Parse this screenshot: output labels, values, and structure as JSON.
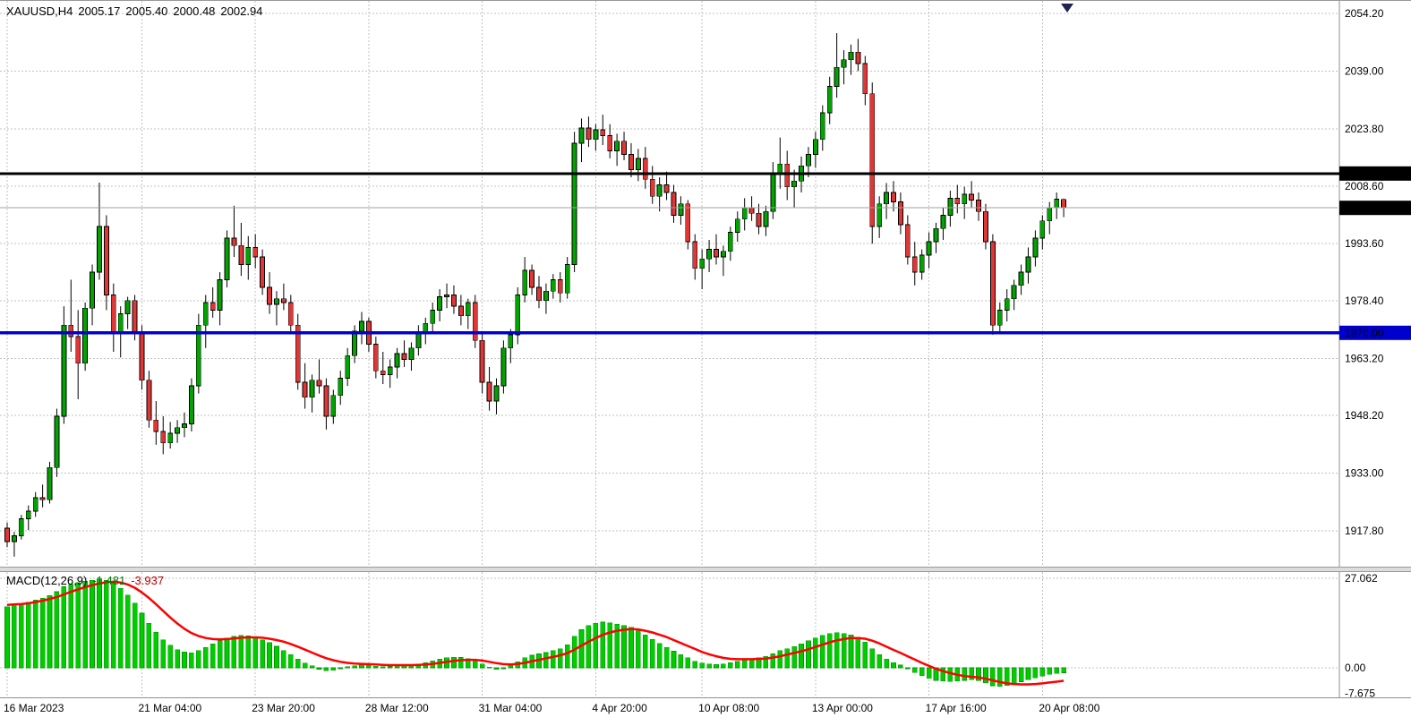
{
  "info_bar": {
    "symbol": "XAUUSD,H4",
    "open": "2005.17",
    "high": "2005.40",
    "low": "2000.48",
    "close": "2002.94"
  },
  "macd_panel": {
    "name": "MACD(12,26,9)",
    "main_value": "-1.481",
    "signal_value": "-3.937"
  },
  "colors": {
    "bull": "#00a300",
    "bear": "#e13636",
    "wick": "#000000",
    "macd_bar": "#00cc00",
    "macd_bar_edge": "#009900",
    "signal_line": "#ff0000",
    "resistance": "#000000",
    "support": "#0000cc",
    "grid": "#c2c2c2",
    "axis_border": "#8f8f8f",
    "axis_text": "#000000",
    "badge_dark": "#000000",
    "badge_blue": "#0000cc",
    "badge_text": "#ffffff",
    "current_price_line": "#a0a0a0",
    "shift_marker": "#222255"
  },
  "chart_data": [
    {
      "type": "candlestick",
      "symbol": "XAUUSD",
      "timeframe": "H4",
      "title": "XAUUSD,H4",
      "ylim": [
        1905,
        2058
      ],
      "grid": true,
      "price_ticks": [
        "2054.20",
        "2039.00",
        "2023.80",
        "2008.60",
        "1993.60",
        "1978.40",
        "1963.20",
        "1948.20",
        "1933.00",
        "1917.80"
      ],
      "levels": {
        "resistance": {
          "price": 2012.0,
          "label": "2012.00"
        },
        "support": {
          "price": 1970.0,
          "label": "1970.00"
        },
        "last_price": {
          "price": 2002.94,
          "label": "2002.94"
        }
      },
      "time_labels": [
        {
          "text": "16 Mar 2023",
          "index": 0
        },
        {
          "text": "21 Mar 04:00",
          "index": 19
        },
        {
          "text": "23 Mar 20:00",
          "index": 35
        },
        {
          "text": "28 Mar 12:00",
          "index": 51
        },
        {
          "text": "31 Mar 04:00",
          "index": 67
        },
        {
          "text": "4 Apr 20:00",
          "index": 83
        },
        {
          "text": "10 Apr 08:00",
          "index": 98
        },
        {
          "text": "13 Apr 00:00",
          "index": 114
        },
        {
          "text": "17 Apr 16:00",
          "index": 130
        },
        {
          "text": "20 Apr 08:00",
          "index": 146
        }
      ],
      "candles_ohlc": [
        [
          1918.5,
          1920,
          1913.5,
          1915
        ],
        [
          1915,
          1917.5,
          1911,
          1916.5
        ],
        [
          1916.5,
          1922,
          1915.5,
          1921
        ],
        [
          1921,
          1924.5,
          1918,
          1923
        ],
        [
          1923,
          1928,
          1921.5,
          1926.5
        ],
        [
          1926.5,
          1930,
          1924,
          1926
        ],
        [
          1926,
          1936,
          1925,
          1934.5
        ],
        [
          1934.5,
          1950,
          1932,
          1948
        ],
        [
          1948,
          1977,
          1946,
          1972
        ],
        [
          1972,
          1984,
          1965,
          1969
        ],
        [
          1969,
          1976,
          1952.5,
          1962
        ],
        [
          1962,
          1978,
          1960,
          1976.5
        ],
        [
          1976.5,
          1988,
          1972,
          1986
        ],
        [
          1986,
          2009.6,
          1984,
          1998
        ],
        [
          1998,
          2001,
          1976,
          1980
        ],
        [
          1980,
          1983,
          1965,
          1970
        ],
        [
          1970,
          1977,
          1963.5,
          1975
        ],
        [
          1975,
          1979.5,
          1971,
          1978.5
        ],
        [
          1978.5,
          1980,
          1968,
          1970
        ],
        [
          1970,
          1972,
          1955,
          1957.5
        ],
        [
          1957.5,
          1960,
          1945,
          1947
        ],
        [
          1947,
          1952,
          1940.5,
          1944
        ],
        [
          1944,
          1948,
          1938,
          1941
        ],
        [
          1941,
          1946.5,
          1939.5,
          1943.5
        ],
        [
          1943.5,
          1947,
          1941,
          1945
        ],
        [
          1945,
          1949,
          1942.5,
          1946
        ],
        [
          1946,
          1958,
          1944,
          1956
        ],
        [
          1956,
          1975,
          1954,
          1972
        ],
        [
          1972,
          1980,
          1966,
          1978
        ],
        [
          1978,
          1982,
          1974,
          1976
        ],
        [
          1976,
          1986,
          1972,
          1984
        ],
        [
          1984,
          1997,
          1982,
          1995
        ],
        [
          1995,
          2003.5,
          1990,
          1993
        ],
        [
          1993,
          1999,
          1985,
          1988
        ],
        [
          1988,
          1995.5,
          1984,
          1992.5
        ],
        [
          1992.5,
          1996,
          1987,
          1990
        ],
        [
          1990,
          1992,
          1980,
          1982
        ],
        [
          1982,
          1986,
          1975,
          1977.5
        ],
        [
          1977.5,
          1981,
          1972,
          1979
        ],
        [
          1979,
          1983,
          1976,
          1978
        ],
        [
          1978,
          1980,
          1970,
          1972
        ],
        [
          1972,
          1975,
          1955,
          1957
        ],
        [
          1957,
          1962,
          1950,
          1953
        ],
        [
          1953,
          1959,
          1949,
          1957.5
        ],
        [
          1957.5,
          1963,
          1954,
          1956
        ],
        [
          1956,
          1958,
          1944.5,
          1948
        ],
        [
          1948,
          1955,
          1946,
          1953.5
        ],
        [
          1953.5,
          1960,
          1951,
          1958
        ],
        [
          1958,
          1966,
          1956,
          1964
        ],
        [
          1964,
          1972,
          1962,
          1970.5
        ],
        [
          1970.5,
          1975.5,
          1967,
          1973
        ],
        [
          1973,
          1974,
          1965,
          1967
        ],
        [
          1967,
          1969,
          1958,
          1960
        ],
        [
          1960,
          1965,
          1956.5,
          1959
        ],
        [
          1959,
          1963,
          1955.5,
          1961
        ],
        [
          1961,
          1966,
          1958,
          1964.5
        ],
        [
          1964.5,
          1968,
          1961,
          1963
        ],
        [
          1963,
          1967.5,
          1960,
          1966
        ],
        [
          1966,
          1972,
          1964,
          1970
        ],
        [
          1970,
          1974,
          1967,
          1972.5
        ],
        [
          1972.5,
          1978,
          1970,
          1976
        ],
        [
          1976,
          1981.5,
          1973,
          1979.5
        ],
        [
          1979.5,
          1983,
          1976.5,
          1980
        ],
        [
          1980,
          1982.5,
          1975,
          1977
        ],
        [
          1977,
          1980,
          1972,
          1974.5
        ],
        [
          1974.5,
          1979,
          1971,
          1978
        ],
        [
          1978,
          1980,
          1966,
          1968
        ],
        [
          1968,
          1970,
          1954,
          1957
        ],
        [
          1957,
          1961,
          1949.5,
          1952
        ],
        [
          1952,
          1958,
          1948.5,
          1956
        ],
        [
          1956,
          1968,
          1954,
          1966
        ],
        [
          1966,
          1971,
          1962,
          1969.5
        ],
        [
          1969.5,
          1982,
          1967,
          1980
        ],
        [
          1980,
          1990,
          1978,
          1986.5
        ],
        [
          1986.5,
          1988,
          1980,
          1982
        ],
        [
          1982,
          1985,
          1976.5,
          1978.5
        ],
        [
          1978.5,
          1983,
          1975,
          1981
        ],
        [
          1981,
          1985.5,
          1979,
          1984
        ],
        [
          1984,
          1986,
          1978,
          1980.5
        ],
        [
          1980.5,
          1990,
          1979,
          1988
        ],
        [
          1988,
          2023,
          1986,
          2020
        ],
        [
          2020,
          2026.5,
          2015,
          2024
        ],
        [
          2024,
          2027,
          2019,
          2021
        ],
        [
          2021,
          2025,
          2018,
          2023.5
        ],
        [
          2023.5,
          2027.5,
          2019.5,
          2022
        ],
        [
          2022,
          2025,
          2016,
          2018
        ],
        [
          2018,
          2022.5,
          2014,
          2020.5
        ],
        [
          2020.5,
          2023,
          2015.5,
          2017
        ],
        [
          2017,
          2020,
          2011,
          2013
        ],
        [
          2013,
          2018.5,
          2010,
          2016
        ],
        [
          2016,
          2019,
          2008,
          2010.5
        ],
        [
          2010.5,
          2014,
          2004,
          2006
        ],
        [
          2006,
          2011,
          2002,
          2009
        ],
        [
          2009,
          2012.5,
          2005,
          2007
        ],
        [
          2007,
          2009,
          1999,
          2001
        ],
        [
          2001,
          2006,
          1998.5,
          2004
        ],
        [
          2004,
          2005,
          1992,
          1994
        ],
        [
          1994,
          1996,
          1984,
          1987
        ],
        [
          1987,
          1992,
          1981.5,
          1989.5
        ],
        [
          1989.5,
          1994.5,
          1986,
          1992
        ],
        [
          1992,
          1996,
          1988,
          1990
        ],
        [
          1990,
          1993,
          1985,
          1991.5
        ],
        [
          1991.5,
          1998,
          1989,
          1996.5
        ],
        [
          1996.5,
          2002,
          1994,
          2000
        ],
        [
          2000,
          2005.5,
          1997,
          2003
        ],
        [
          2003,
          2006,
          1999.5,
          2001.5
        ],
        [
          2001.5,
          2004,
          1996,
          1998
        ],
        [
          1998,
          2003.5,
          1995.5,
          2002
        ],
        [
          2002,
          2015,
          2000,
          2012
        ],
        [
          2012,
          2021.5,
          2008,
          2014.5
        ],
        [
          2014.5,
          2018,
          2005,
          2008.5
        ],
        [
          2008.5,
          2013,
          2003,
          2010
        ],
        [
          2010,
          2016.5,
          2007,
          2014
        ],
        [
          2014,
          2019,
          2011,
          2017
        ],
        [
          2017,
          2023,
          2013.5,
          2021
        ],
        [
          2021,
          2030,
          2018,
          2028
        ],
        [
          2028,
          2037.5,
          2025,
          2035
        ],
        [
          2035,
          2049,
          2032,
          2040
        ],
        [
          2040,
          2044.5,
          2035.5,
          2042
        ],
        [
          2042,
          2046,
          2038,
          2044
        ],
        [
          2044,
          2047.5,
          2039,
          2041
        ],
        [
          2041,
          2043,
          2030,
          2033
        ],
        [
          2033,
          2036,
          1993.5,
          1998
        ],
        [
          1998,
          2006,
          1995,
          2004
        ],
        [
          2004,
          2009.5,
          2000,
          2007
        ],
        [
          2007,
          2010,
          2002,
          2004.5
        ],
        [
          2004.5,
          2007,
          1996,
          1998.5
        ],
        [
          1998.5,
          2001,
          1988,
          1990
        ],
        [
          1990,
          1994,
          1982.5,
          1986
        ],
        [
          1986,
          1992,
          1984,
          1990.5
        ],
        [
          1990.5,
          1996.5,
          1987,
          1994
        ],
        [
          1994,
          1999,
          1991,
          1997.5
        ],
        [
          1997.5,
          2003,
          1994.5,
          2001
        ],
        [
          2001,
          2007.5,
          1998,
          2005.5
        ],
        [
          2005.5,
          2009,
          2001.5,
          2004
        ],
        [
          2004,
          2008.5,
          2000,
          2006.5
        ],
        [
          2006.5,
          2010,
          2003,
          2005
        ],
        [
          2005,
          2007,
          1999.5,
          2002
        ],
        [
          2002,
          2004,
          1992,
          1994
        ],
        [
          1994,
          1996,
          1969.5,
          1972
        ],
        [
          1972,
          1978,
          1970,
          1976
        ],
        [
          1976,
          1981.5,
          1973,
          1979
        ],
        [
          1979,
          1984,
          1976,
          1982.5
        ],
        [
          1982.5,
          1988,
          1980,
          1986
        ],
        [
          1986,
          1992.5,
          1983,
          1990
        ],
        [
          1990,
          1997,
          1987.5,
          1995
        ],
        [
          1995,
          2001,
          1992,
          1999.5
        ],
        [
          1999.5,
          2004.5,
          1996,
          2003
        ],
        [
          2003,
          2007,
          2000,
          2005.2
        ],
        [
          2005.17,
          2005.4,
          2000.48,
          2002.94
        ]
      ]
    },
    {
      "type": "bar",
      "name": "MACD(12,26,9)",
      "params": [
        12,
        26,
        9
      ],
      "ylim": [
        -7.675,
        27.062
      ],
      "axis_ticks": [
        "27.062",
        "0.00",
        "-7.675"
      ],
      "last_main": -1.481,
      "last_signal": -3.937,
      "histogram": [
        18.5,
        19.2,
        19.0,
        19.8,
        20.5,
        21.0,
        21.8,
        23.0,
        24.5,
        25.2,
        25.8,
        26.2,
        26.5,
        26.8,
        26.4,
        25.6,
        24.0,
        22.0,
        19.5,
        16.5,
        13.5,
        10.8,
        8.5,
        6.8,
        5.5,
        4.8,
        4.5,
        5.2,
        6.2,
        7.2,
        8.2,
        9.0,
        9.5,
        9.8,
        9.6,
        9.2,
        8.5,
        7.6,
        6.5,
        5.2,
        4.0,
        2.6,
        1.4,
        0.6,
        -0.4,
        -0.9,
        -0.7,
        -0.2,
        0.3,
        0.6,
        0.9,
        0.8,
        0.5,
        0.3,
        0.4,
        0.6,
        0.7,
        0.9,
        1.2,
        1.6,
        2.1,
        2.6,
        3.0,
        3.2,
        3.1,
        2.8,
        2.2,
        1.2,
        0.2,
        -0.5,
        0.0,
        0.8,
        1.8,
        3.0,
        3.8,
        4.2,
        4.6,
        5.2,
        5.8,
        7.0,
        9.5,
        11.5,
        12.8,
        13.5,
        13.8,
        13.6,
        13.2,
        12.8,
        12.2,
        11.2,
        10.0,
        8.6,
        7.4,
        6.2,
        5.0,
        4.0,
        3.0,
        2.0,
        1.4,
        1.2,
        1.0,
        1.2,
        1.6,
        2.0,
        2.5,
        2.8,
        3.0,
        3.4,
        4.2,
        5.2,
        5.8,
        6.4,
        7.2,
        8.2,
        9.0,
        9.8,
        10.3,
        10.6,
        10.4,
        10.0,
        9.2,
        7.8,
        5.8,
        4.0,
        2.6,
        1.6,
        0.8,
        -0.2,
        -1.4,
        -2.4,
        -3.2,
        -3.8,
        -4.0,
        -4.1,
        -4.0,
        -3.8,
        -3.6,
        -3.8,
        -4.5,
        -5.4,
        -5.6,
        -5.3,
        -4.8,
        -4.2,
        -3.6,
        -3.0,
        -2.5,
        -2.0,
        -1.7,
        -1.481
      ],
      "signal": [
        19.0,
        19.2,
        19.3,
        19.5,
        19.9,
        20.3,
        20.8,
        21.4,
        22.2,
        23.0,
        23.7,
        24.4,
        25.0,
        25.5,
        25.9,
        26.0,
        25.8,
        25.2,
        24.2,
        22.8,
        21.1,
        19.2,
        17.2,
        15.2,
        13.4,
        11.8,
        10.5,
        9.6,
        9.0,
        8.7,
        8.6,
        8.7,
        8.9,
        9.1,
        9.2,
        9.2,
        9.1,
        8.8,
        8.4,
        7.9,
        7.2,
        6.4,
        5.5,
        4.6,
        3.7,
        2.9,
        2.3,
        1.8,
        1.5,
        1.3,
        1.2,
        1.1,
        1.0,
        0.9,
        0.8,
        0.8,
        0.8,
        0.8,
        0.9,
        1.0,
        1.2,
        1.5,
        1.8,
        2.1,
        2.3,
        2.4,
        2.4,
        2.2,
        1.8,
        1.4,
        1.1,
        1.0,
        1.2,
        1.5,
        2.0,
        2.4,
        2.9,
        3.3,
        3.8,
        4.4,
        5.5,
        6.7,
        7.9,
        9.0,
        10.0,
        10.7,
        11.2,
        11.5,
        11.7,
        11.6,
        11.2,
        10.7,
        10.0,
        9.3,
        8.4,
        7.5,
        6.6,
        5.7,
        4.8,
        4.1,
        3.5,
        3.0,
        2.7,
        2.6,
        2.6,
        2.6,
        2.7,
        2.8,
        3.1,
        3.5,
        4.0,
        4.5,
        5.0,
        5.6,
        6.3,
        7.0,
        7.7,
        8.3,
        8.7,
        9.0,
        9.0,
        8.8,
        8.2,
        7.4,
        6.4,
        5.4,
        4.5,
        3.5,
        2.5,
        1.5,
        0.6,
        -0.3,
        -1.0,
        -1.6,
        -2.1,
        -2.5,
        -2.7,
        -2.9,
        -3.3,
        -3.8,
        -4.3,
        -4.7,
        -4.9,
        -5.0,
        -5.0,
        -4.9,
        -4.7,
        -4.45,
        -4.2,
        -3.937
      ]
    }
  ]
}
